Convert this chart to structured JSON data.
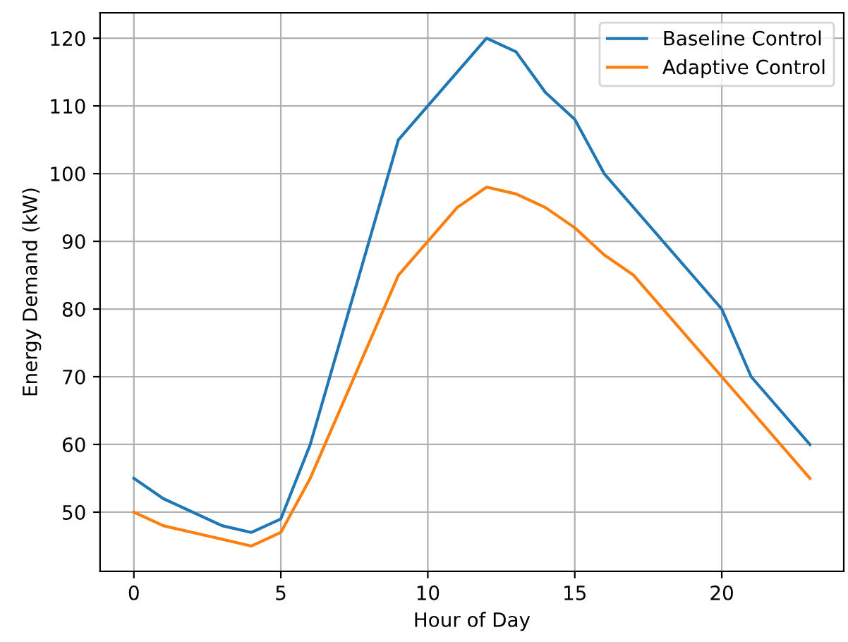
{
  "chart_data": {
    "type": "line",
    "xlabel": "Hour of Day",
    "ylabel": "Energy Demand (kW)",
    "series": [
      {
        "name": "Baseline Control",
        "color": "#1f77b4",
        "x": [
          0,
          1,
          3,
          4,
          5,
          6,
          9,
          12,
          13,
          14,
          15,
          16,
          20,
          21,
          23
        ],
        "values": [
          55,
          52,
          48,
          47,
          49,
          60,
          105,
          120,
          118,
          112,
          108,
          100,
          80,
          70,
          60
        ]
      },
      {
        "name": "Adaptive Control",
        "color": "#ff7f0e",
        "x": [
          0,
          1,
          4,
          5,
          6,
          9,
          11,
          12,
          13,
          14,
          15,
          16,
          17,
          20,
          23
        ],
        "values": [
          50,
          48,
          45,
          47,
          55,
          85,
          95,
          98,
          97,
          95,
          92,
          88,
          85,
          70,
          55
        ]
      }
    ],
    "xlim": [
      -1.15,
      24.15
    ],
    "ylim": [
      41.25,
      123.75
    ],
    "xticks": [
      0,
      5,
      10,
      15,
      20
    ],
    "yticks": [
      50,
      60,
      70,
      80,
      90,
      100,
      110,
      120
    ],
    "grid": true,
    "legend": "top right"
  }
}
